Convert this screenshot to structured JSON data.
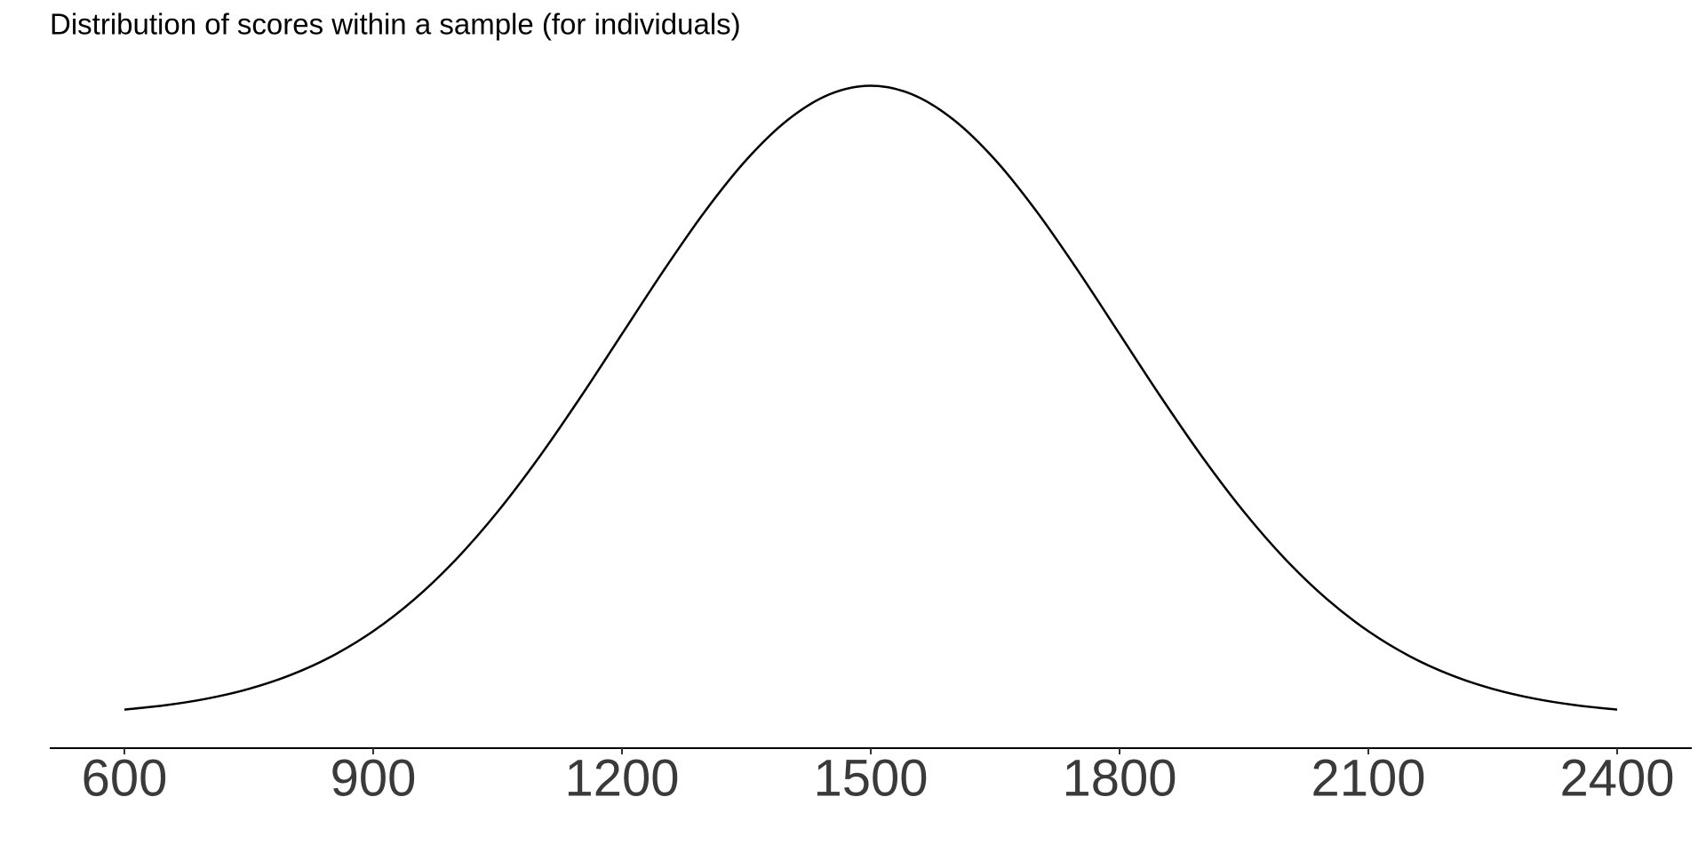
{
  "chart_data": {
    "type": "line",
    "title": "Distribution of scores within a sample (for individuals)",
    "x": [
      600,
      650,
      700,
      750,
      800,
      850,
      900,
      950,
      1000,
      1050,
      1100,
      1150,
      1200,
      1250,
      1300,
      1350,
      1400,
      1450,
      1500,
      1550,
      1600,
      1650,
      1700,
      1750,
      1800,
      1850,
      1900,
      1950,
      2000,
      2050,
      2100,
      2150,
      2200,
      2250,
      2300,
      2350,
      2400
    ],
    "series": [
      {
        "color": "#000000",
        "values": [
          1.4773e-05,
          2.403e-05,
          3.7993e-05,
          5.8432e-05,
          8.741e-05,
          0.00012719,
          0.00017997,
          0.00024772,
          0.00033159,
          0.00043172,
          0.0005467,
          0.00067331,
          0.00080657,
          0.0009397,
          0.0010648,
          0.0011736,
          0.0012579,
          0.0013115,
          0.0013298,
          0.0013115,
          0.0012579,
          0.0011736,
          0.0010648,
          0.0009397,
          0.00080657,
          0.00067331,
          0.0005467,
          0.00043172,
          0.00033159,
          0.00024772,
          0.00017997,
          0.00012719,
          8.741e-05,
          5.8432e-05,
          3.7993e-05,
          2.403e-05,
          1.4773e-05
        ]
      }
    ],
    "xlim": [
      510,
      2490
    ],
    "xticks": [
      600,
      900,
      1200,
      1500,
      1800,
      2100,
      2400
    ],
    "ylim": [
      -6.65e-05,
      0.0013963
    ]
  }
}
